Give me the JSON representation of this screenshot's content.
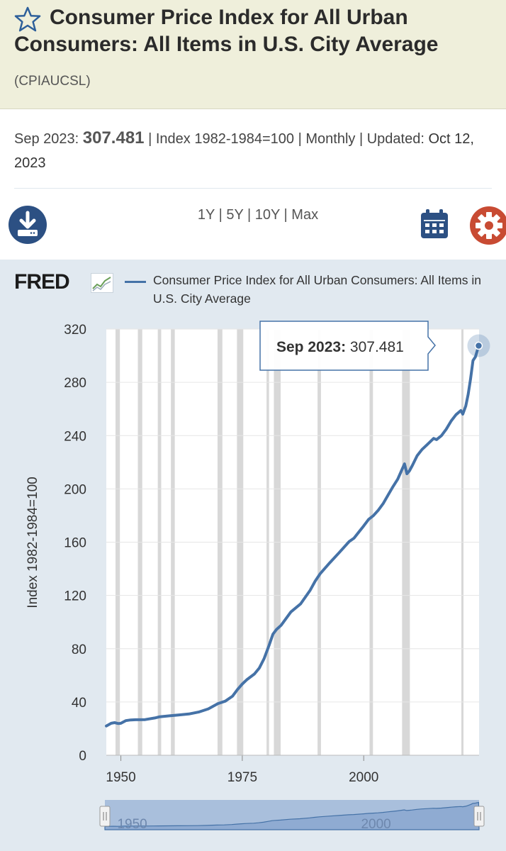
{
  "header": {
    "title": "Consumer Price Index for All Urban Consumers: All Items in U.S. City Average",
    "series_id": "(CPIAUCSL)"
  },
  "summary": {
    "date": "Sep 2023:",
    "value": "307.481",
    "units": "Index 1982-1984=100",
    "frequency": "Monthly",
    "updated_label": "Updated:",
    "updated_date": "Oct 12, 2023"
  },
  "toolbar": {
    "ranges": [
      "1Y",
      "5Y",
      "10Y",
      "Max"
    ]
  },
  "legend": {
    "logo": "FRED",
    "series_label": "Consumer Price Index for All Urban Consumers: All Items in U.S. City Average"
  },
  "tooltip": {
    "date": "Sep 2023:",
    "value": "307.481"
  },
  "colors": {
    "line": "#4572a7",
    "recession": "#d8d8d8",
    "tooltip_border": "#4572a7"
  },
  "chart_data": {
    "type": "line",
    "title": "Consumer Price Index for All Urban Consumers: All Items in U.S. City Average",
    "ylabel": "Index 1982-1984=100",
    "xlabel": "",
    "ylim": [
      0,
      320
    ],
    "xlim": [
      1947,
      2023.75
    ],
    "yticks": [
      0,
      40,
      80,
      120,
      160,
      200,
      240,
      280,
      320
    ],
    "xticks": [
      1950,
      1975,
      2000
    ],
    "series": [
      {
        "name": "CPIAUCSL",
        "x": [
          1947.0,
          1948.0,
          1948.7,
          1949.5,
          1950.0,
          1951.0,
          1952.0,
          1953.0,
          1955.0,
          1957.0,
          1958.0,
          1960.0,
          1962.0,
          1964.0,
          1966.0,
          1968.0,
          1970.0,
          1971.5,
          1973.0,
          1974.0,
          1975.0,
          1976.0,
          1977.5,
          1978.5,
          1979.5,
          1980.5,
          1981.3,
          1982.0,
          1983.0,
          1985.0,
          1987.0,
          1989.0,
          1990.0,
          1991.0,
          1993.0,
          1995.0,
          1997.0,
          1998.0,
          2000.0,
          2001.0,
          2002.0,
          2003.0,
          2004.0,
          2005.0,
          2006.0,
          2007.0,
          2008.4,
          2008.9,
          2009.4,
          2010.0,
          2011.0,
          2012.0,
          2013.0,
          2014.4,
          2015.0,
          2016.0,
          2017.0,
          2018.0,
          2019.0,
          2020.0,
          2020.4,
          2021.0,
          2021.5,
          2022.0,
          2022.5,
          2023.0,
          2023.67
        ],
        "values": [
          22,
          24,
          24.5,
          23.8,
          24,
          26,
          26.5,
          26.7,
          26.8,
          28,
          28.9,
          29.6,
          30.3,
          31,
          32.4,
          34.8,
          38.8,
          40.6,
          44.4,
          49.3,
          53.5,
          56.9,
          61,
          65.5,
          72.6,
          82.4,
          90.9,
          94.3,
          97.6,
          107.6,
          113.6,
          124,
          130.7,
          136.2,
          144.5,
          152.4,
          160.5,
          163,
          172.2,
          177.1,
          179.9,
          184,
          188.9,
          195.3,
          201.6,
          207.3,
          218.8,
          211.4,
          213.5,
          217.5,
          224.9,
          229.6,
          233,
          237.9,
          237,
          240,
          244.8,
          251,
          255.7,
          258.8,
          256.1,
          262.2,
          270.9,
          282.6,
          296.3,
          299.2,
          307.481
        ]
      }
    ],
    "recessions": [
      [
        1948.9,
        1949.8
      ],
      [
        1953.5,
        1954.4
      ],
      [
        1957.6,
        1958.3
      ],
      [
        1960.3,
        1961.1
      ],
      [
        1969.9,
        1970.9
      ],
      [
        1973.9,
        1975.2
      ],
      [
        1980.0,
        1980.5
      ],
      [
        1981.5,
        1982.9
      ],
      [
        1990.5,
        1991.2
      ],
      [
        2001.2,
        2001.9
      ],
      [
        2007.9,
        2009.5
      ],
      [
        2020.1,
        2020.3
      ]
    ],
    "navigator_labels": [
      "1950",
      "2000"
    ]
  }
}
